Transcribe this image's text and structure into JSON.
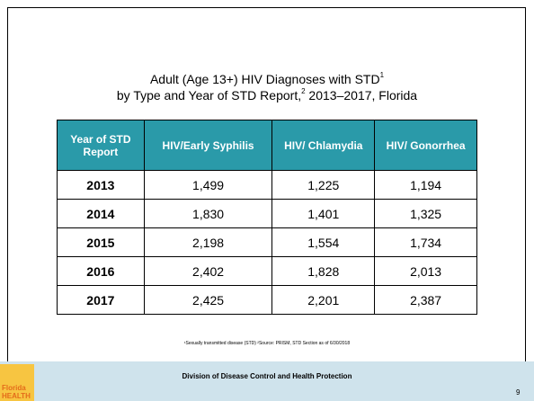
{
  "slide": {
    "title": {
      "line1": "Adult (Age 13+) HIV Diagnoses with STD",
      "sup1": "1",
      "line2": "by Type and Year of STD Report,",
      "sup2": "2",
      "line2_end": " 2013–2017, Florida"
    },
    "table": {
      "header": [
        "Year of STD Report",
        "HIV/Early Syphilis",
        "HIV/ Chlamydia",
        "HIV/ Gonorrhea"
      ],
      "rows": [
        [
          "2013",
          "1,499",
          "1,225",
          "1,194"
        ],
        [
          "2014",
          "1,830",
          "1,401",
          "1,325"
        ],
        [
          "2015",
          "2,198",
          "1,554",
          "1,734"
        ],
        [
          "2016",
          "2,402",
          "1,828",
          "2,013"
        ],
        [
          "2017",
          "2,425",
          "2,201",
          "2,387"
        ]
      ]
    },
    "footnote": "¹Sexually transmitted disease (STD) ²Source: PRISM, STD Section as of 6/30/2018",
    "footer": {
      "logo_line1": "Florida",
      "logo_line2": "HEALTH",
      "text": "Division of Disease Control and Health Protection",
      "page": "9"
    }
  }
}
